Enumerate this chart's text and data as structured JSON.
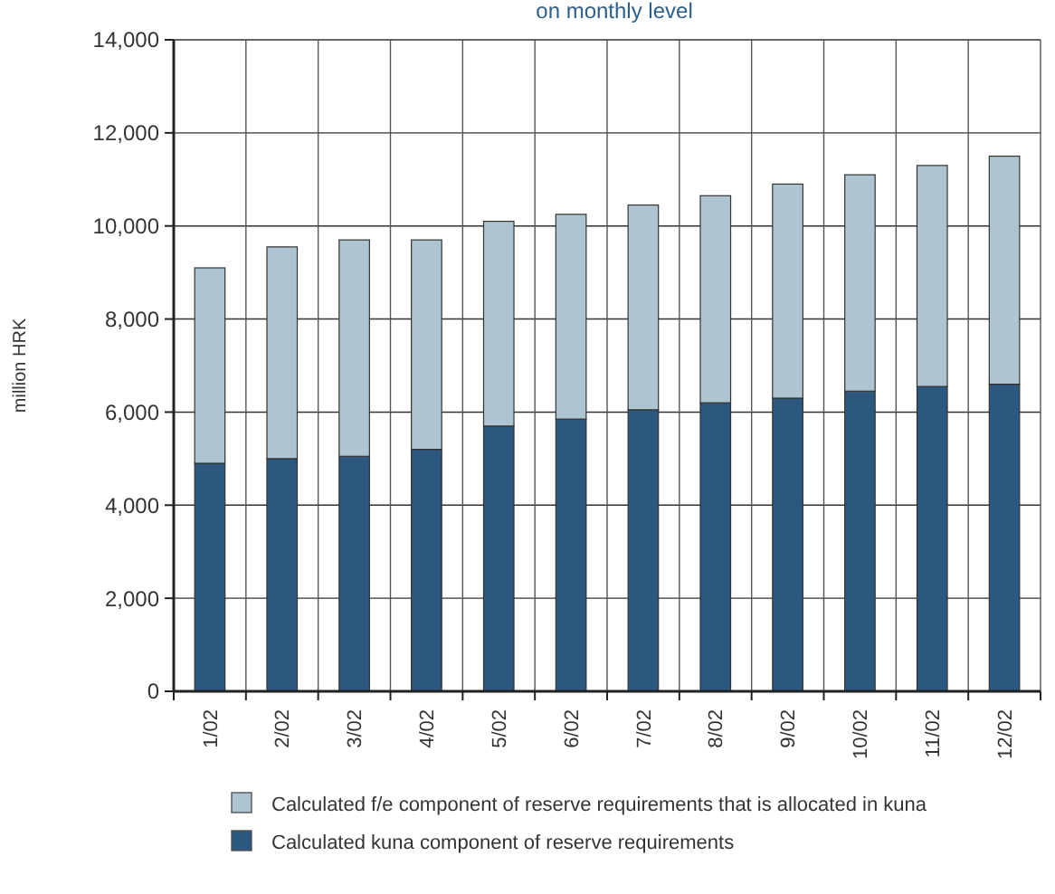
{
  "chart_data": {
    "type": "bar",
    "title": "on monthly level",
    "ylabel": "million HRK",
    "categories": [
      "1/02",
      "2/02",
      "3/02",
      "4/02",
      "5/02",
      "6/02",
      "7/02",
      "8/02",
      "9/02",
      "10/02",
      "11/02",
      "12/02"
    ],
    "stacked": true,
    "series": [
      {
        "name": "Calculated kuna component of reserve requirements",
        "color": "#2c577e",
        "values": [
          4900,
          5000,
          5050,
          5200,
          5700,
          5850,
          6050,
          6200,
          6300,
          6450,
          6550,
          6600
        ]
      },
      {
        "name": "Calculated f/e component of reserve requirements that is allocated in kuna",
        "color": "#aec5d1",
        "values": [
          4200,
          4550,
          4650,
          4500,
          4400,
          4400,
          4400,
          4450,
          4600,
          4650,
          4750,
          4900
        ]
      }
    ],
    "ylim": [
      0,
      14000
    ],
    "yticks": [
      {
        "value": 0,
        "label": "0"
      },
      {
        "value": 2000,
        "label": "2,000"
      },
      {
        "value": 4000,
        "label": "4,000"
      },
      {
        "value": 6000,
        "label": "6,000"
      },
      {
        "value": 8000,
        "label": "8,000"
      },
      {
        "value": 10000,
        "label": "10,000"
      },
      {
        "value": 12000,
        "label": "12,000"
      },
      {
        "value": 14000,
        "label": "14,000"
      }
    ],
    "grid": true,
    "legend": "bottom"
  }
}
